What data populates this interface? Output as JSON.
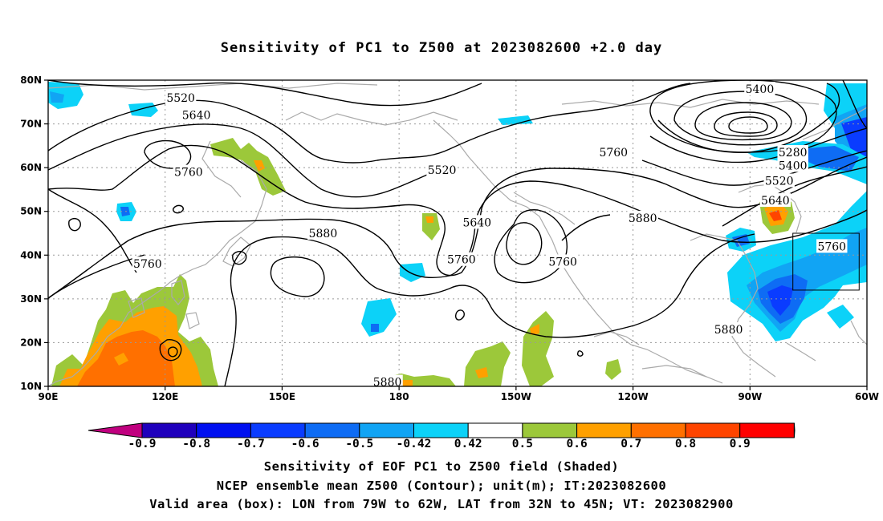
{
  "title": "Sensitivity of PC1 to Z500 at 2023082600 +2.0 day",
  "captions": {
    "line1": "Sensitivity of EOF PC1 to Z500 field (Shaded)",
    "line2": "NCEP ensemble mean Z500 (Contour); unit(m); IT:2023082600",
    "line3": "Valid area (box): LON from 79W to 62W, LAT from 32N to 45N; VT: 2023082900"
  },
  "axes": {
    "lat_labels": [
      "80N",
      "70N",
      "60N",
      "50N",
      "40N",
      "30N",
      "20N",
      "10N"
    ],
    "lon_labels": [
      "90E",
      "120E",
      "150E",
      "180",
      "150W",
      "120W",
      "90W",
      "60W"
    ]
  },
  "contour_labels": [
    {
      "text": "5520",
      "lon": 124,
      "lat": 76
    },
    {
      "text": "5640",
      "lon": 128,
      "lat": 72
    },
    {
      "text": "5760",
      "lon": 126,
      "lat": 59
    },
    {
      "text": "5760",
      "lon": 115.5,
      "lat": 38
    },
    {
      "text": "5880",
      "lon": 160.5,
      "lat": 45
    },
    {
      "text": "5880",
      "lon": 177,
      "lat": 11
    },
    {
      "text": "5520",
      "lon": 191,
      "lat": 59.5
    },
    {
      "text": "5640",
      "lon": 200,
      "lat": 47.5
    },
    {
      "text": "5760",
      "lon": 196,
      "lat": 39
    },
    {
      "text": "5760",
      "lon": 222,
      "lat": 38.5
    },
    {
      "text": "5760",
      "lon": 235,
      "lat": 63.5
    },
    {
      "text": "5880",
      "lon": 242.5,
      "lat": 48.5
    },
    {
      "text": "5880",
      "lon": 264.5,
      "lat": 23
    },
    {
      "text": "5400",
      "lon": 272.5,
      "lat": 78
    },
    {
      "text": "5280",
      "lon": 281,
      "lat": 63.5
    },
    {
      "text": "5400",
      "lon": 281,
      "lat": 60.5
    },
    {
      "text": "5520",
      "lon": 277.5,
      "lat": 57
    },
    {
      "text": "5640",
      "lon": 276.5,
      "lat": 52.5
    },
    {
      "text": "5760",
      "lon": 291,
      "lat": 42
    }
  ],
  "valid_box": {
    "lon_min": 281,
    "lon_max": 298,
    "lat_min": 32,
    "lat_max": 45
  },
  "colorbar": {
    "labels": [
      "-0.9",
      "-0.8",
      "-0.7",
      "-0.6",
      "-0.5",
      "-0.42",
      "0.42",
      "0.5",
      "0.6",
      "0.7",
      "0.8",
      "0.9"
    ],
    "colors": [
      "#c0007f",
      "#1f00bc",
      "#0010f0",
      "#0a3cff",
      "#0e6cf4",
      "#11a4f4",
      "#0cd2f8",
      "#ffffff",
      "#9cc83a",
      "#ffa000",
      "#ff7000",
      "#ff4500",
      "#ff0000",
      "#f5a0c8"
    ]
  }
}
